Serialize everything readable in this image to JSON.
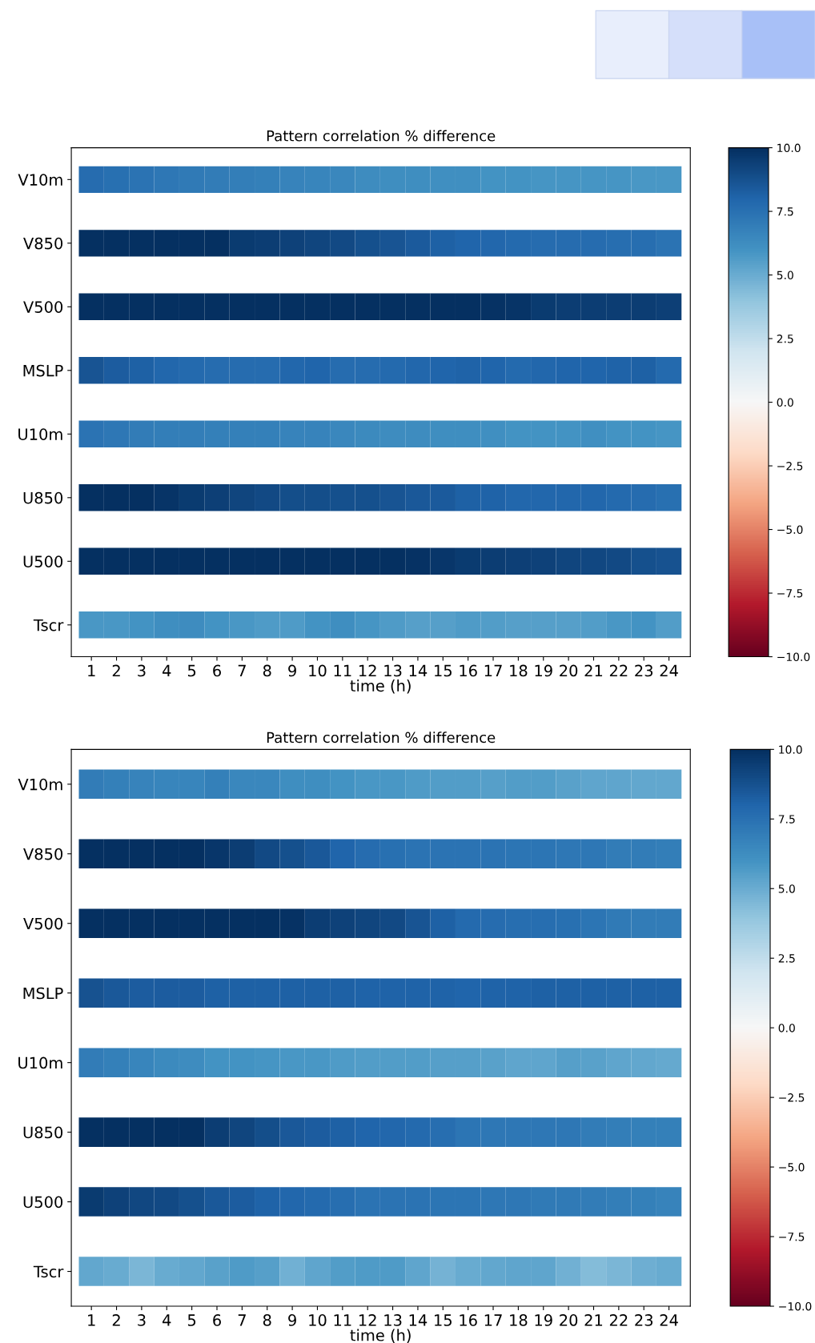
{
  "chart_data": [
    {
      "type": "heatmap",
      "title": "Pattern correlation % difference",
      "xlabel": "time (h)",
      "categories": [
        "1",
        "2",
        "3",
        "4",
        "5",
        "6",
        "7",
        "8",
        "9",
        "10",
        "11",
        "12",
        "13",
        "14",
        "15",
        "16",
        "17",
        "18",
        "19",
        "20",
        "21",
        "22",
        "23",
        "24"
      ],
      "y_categories": [
        "V10m",
        "V850",
        "V500",
        "MSLP",
        "U10m",
        "U850",
        "U500",
        "Tscr"
      ],
      "cells": [
        [
          7.7,
          7.5,
          7.4,
          7.2,
          7.1,
          7.0,
          6.9,
          6.8,
          6.7,
          6.6,
          6.5,
          6.3,
          6.2,
          6.2,
          6.1,
          6.1,
          6.0,
          6.0,
          5.9,
          5.9,
          5.9,
          5.9,
          5.8,
          5.8
        ],
        [
          10,
          10,
          10,
          10,
          10,
          10,
          9.6,
          9.5,
          9.3,
          9.2,
          9.0,
          8.8,
          8.6,
          8.4,
          8.2,
          8.0,
          7.9,
          7.8,
          7.7,
          7.7,
          7.7,
          7.6,
          7.6,
          7.4
        ],
        [
          10,
          10,
          10,
          10,
          10,
          10,
          10,
          10,
          10,
          10,
          10,
          10,
          10,
          10,
          10,
          10,
          9.9,
          9.8,
          9.6,
          9.5,
          9.5,
          9.5,
          9.5,
          9.4
        ],
        [
          8.6,
          8.3,
          8.2,
          7.9,
          7.8,
          7.7,
          7.7,
          7.7,
          7.9,
          8.0,
          7.7,
          7.7,
          7.8,
          7.9,
          8.0,
          8.1,
          8.0,
          7.8,
          7.9,
          8.0,
          8.0,
          8.1,
          8.2,
          7.8
        ],
        [
          7.4,
          7.2,
          7.0,
          6.9,
          6.9,
          6.8,
          6.8,
          6.8,
          6.7,
          6.7,
          6.5,
          6.4,
          6.3,
          6.3,
          6.2,
          6.2,
          6.1,
          6.0,
          6.0,
          6.0,
          6.1,
          6.0,
          6.0,
          5.9
        ],
        [
          10,
          10,
          10,
          9.8,
          9.6,
          9.4,
          9.2,
          9.0,
          8.9,
          8.9,
          8.8,
          8.8,
          8.6,
          8.5,
          8.4,
          8.2,
          8.1,
          7.9,
          7.9,
          7.9,
          7.9,
          7.8,
          7.7,
          7.5
        ],
        [
          10,
          10,
          10,
          10,
          10,
          10,
          10,
          10,
          10,
          10,
          10,
          10,
          10,
          9.9,
          9.7,
          9.6,
          9.5,
          9.4,
          9.3,
          9.2,
          9.1,
          9.0,
          8.8,
          8.7
        ],
        [
          5.8,
          5.8,
          6.0,
          6.2,
          6.3,
          6.0,
          5.8,
          5.7,
          5.7,
          6.0,
          6.2,
          5.9,
          5.7,
          5.5,
          5.5,
          5.7,
          5.6,
          5.5,
          5.5,
          5.5,
          5.6,
          5.8,
          6.0,
          5.6
        ]
      ],
      "clim": [
        -10,
        10
      ],
      "cticks": [
        {
          "value": -10,
          "label": "−10.0"
        },
        {
          "value": -7.5,
          "label": "−7.5"
        },
        {
          "value": -5,
          "label": "−5.0"
        },
        {
          "value": -2.5,
          "label": "−2.5"
        },
        {
          "value": 0,
          "label": "0.0"
        },
        {
          "value": 2.5,
          "label": "2.5"
        },
        {
          "value": 5,
          "label": "5.0"
        },
        {
          "value": 7.5,
          "label": "7.5"
        },
        {
          "value": 10,
          "label": "10.0"
        }
      ]
    },
    {
      "type": "heatmap",
      "title": "Pattern correlation % difference",
      "xlabel": "time (h)",
      "categories": [
        "1",
        "2",
        "3",
        "4",
        "5",
        "6",
        "7",
        "8",
        "9",
        "10",
        "11",
        "12",
        "13",
        "14",
        "15",
        "16",
        "17",
        "18",
        "19",
        "20",
        "21",
        "22",
        "23",
        "24"
      ],
      "y_categories": [
        "V10m",
        "V850",
        "V500",
        "MSLP",
        "U10m",
        "U850",
        "U500",
        "Tscr"
      ],
      "cells": [
        [
          7.0,
          6.8,
          6.7,
          6.6,
          6.6,
          6.8,
          6.5,
          6.5,
          6.2,
          6.2,
          6.0,
          5.8,
          5.8,
          5.7,
          5.6,
          5.6,
          5.5,
          5.6,
          5.6,
          5.4,
          5.3,
          5.3,
          5.2,
          5.2
        ],
        [
          10,
          10,
          10,
          10,
          10,
          9.7,
          9.5,
          9.0,
          8.8,
          8.5,
          8.0,
          7.7,
          7.5,
          7.4,
          7.4,
          7.4,
          7.4,
          7.3,
          7.3,
          7.2,
          7.2,
          7.0,
          7.0,
          6.9
        ],
        [
          10,
          10,
          10,
          10,
          10,
          10,
          10,
          10,
          9.9,
          9.5,
          9.3,
          9.2,
          9.0,
          8.6,
          8.2,
          7.8,
          7.7,
          7.6,
          7.6,
          7.5,
          7.3,
          7.1,
          7.0,
          7.0
        ],
        [
          8.7,
          8.5,
          8.3,
          8.3,
          8.3,
          8.2,
          8.2,
          8.2,
          8.2,
          8.2,
          8.2,
          8.1,
          8.1,
          8.1,
          8.1,
          8.0,
          8.1,
          8.1,
          8.2,
          8.2,
          8.2,
          8.2,
          8.2,
          8.2
        ],
        [
          7.0,
          6.8,
          6.6,
          6.4,
          6.3,
          6.0,
          6.0,
          5.9,
          5.8,
          5.8,
          5.7,
          5.6,
          5.6,
          5.6,
          5.5,
          5.5,
          5.4,
          5.3,
          5.3,
          5.5,
          5.4,
          5.3,
          5.2,
          5.1
        ],
        [
          10,
          10,
          10,
          10,
          10,
          9.5,
          9.2,
          8.9,
          8.5,
          8.3,
          8.2,
          8.0,
          7.9,
          7.8,
          7.6,
          7.3,
          7.2,
          7.2,
          7.2,
          7.2,
          7.0,
          6.9,
          6.8,
          6.8
        ],
        [
          9.6,
          9.3,
          9.1,
          9.0,
          8.8,
          8.5,
          8.3,
          8.1,
          7.9,
          7.8,
          7.6,
          7.4,
          7.4,
          7.4,
          7.3,
          7.3,
          7.2,
          7.2,
          7.1,
          7.1,
          7.0,
          6.9,
          6.8,
          6.7
        ],
        [
          5.2,
          5.0,
          4.6,
          5.0,
          5.2,
          5.4,
          5.7,
          5.5,
          4.8,
          5.3,
          5.6,
          5.7,
          5.7,
          5.3,
          4.7,
          5.0,
          5.2,
          5.3,
          5.3,
          4.8,
          4.3,
          4.6,
          4.9,
          5.0
        ]
      ],
      "clim": [
        -10,
        10
      ],
      "cticks": [
        {
          "value": -10,
          "label": "−10.0"
        },
        {
          "value": -7.5,
          "label": "−7.5"
        },
        {
          "value": -5,
          "label": "−5.0"
        },
        {
          "value": -2.5,
          "label": "−2.5"
        },
        {
          "value": 0,
          "label": "0.0"
        },
        {
          "value": 2.5,
          "label": "2.5"
        },
        {
          "value": 5,
          "label": "5.0"
        },
        {
          "value": 7.5,
          "label": "7.5"
        },
        {
          "value": 10,
          "label": "10.0"
        }
      ]
    }
  ]
}
